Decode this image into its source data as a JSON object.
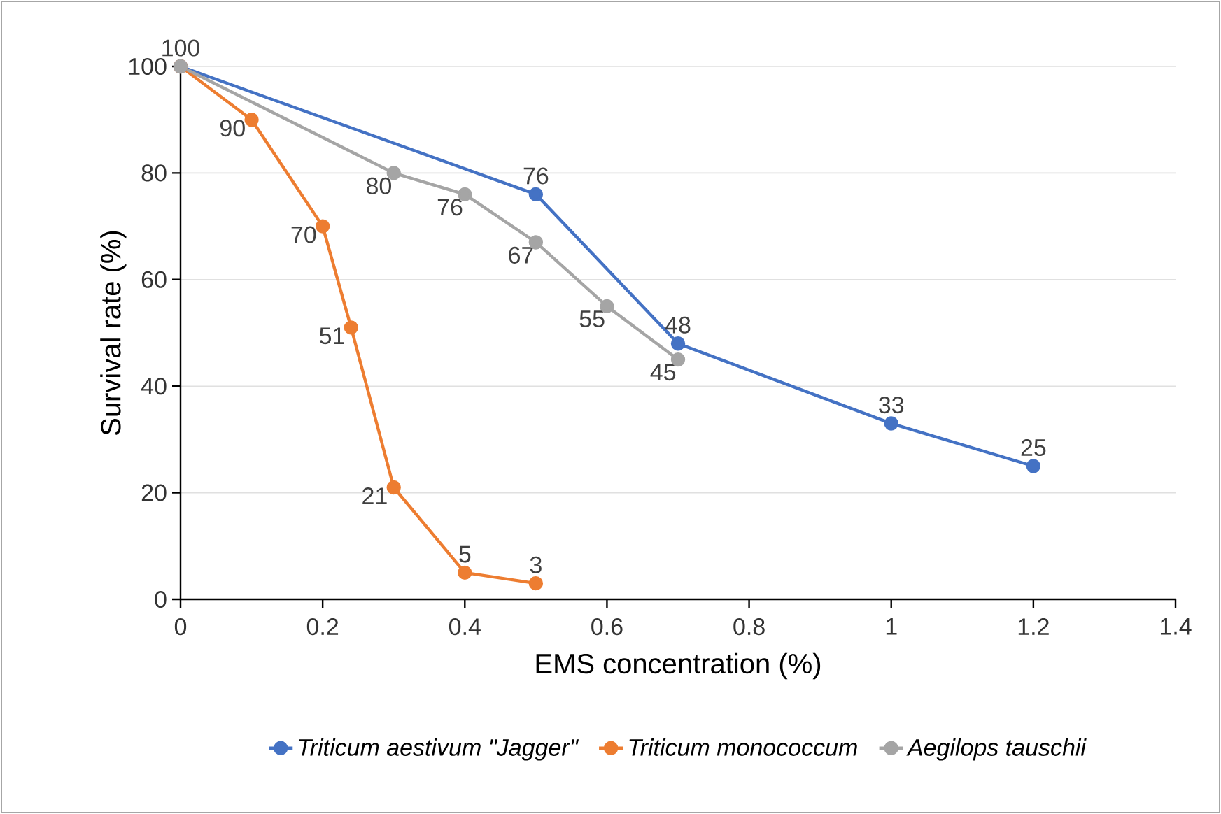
{
  "chart_data": {
    "type": "line",
    "xlabel": "EMS concentration (%)",
    "ylabel": "Survival rate (%)",
    "xlim": [
      0,
      1.4
    ],
    "xticks": [
      0,
      0.2,
      0.4,
      0.6,
      0.8,
      1,
      1.2,
      1.4
    ],
    "ylim": [
      0,
      100
    ],
    "yticks": [
      0,
      20,
      40,
      60,
      80,
      100
    ],
    "grid": "y",
    "legend": "bottom",
    "marker": "circle",
    "line_style": "solid",
    "series": [
      {
        "name": "Triticum aestivum \"Jagger\"",
        "color": "#4472c4",
        "x": [
          0,
          0.5,
          0.7,
          1,
          1.2
        ],
        "values": [
          100,
          76,
          48,
          33,
          25
        ],
        "value_labels": [
          "100",
          "76",
          "48",
          "33",
          "25"
        ]
      },
      {
        "name": "Triticum monococcum",
        "color": "#ed7d31",
        "x": [
          0,
          0.1,
          0.2,
          0.24,
          0.3,
          0.4,
          0.5
        ],
        "values": [
          100,
          90,
          70,
          51,
          21,
          5,
          3
        ],
        "value_labels": [
          null,
          "90",
          "70",
          "51",
          "21",
          "5",
          "3"
        ]
      },
      {
        "name": "Aegilops tauschii",
        "color": "#a5a5a5",
        "x": [
          0,
          0.3,
          0.4,
          0.5,
          0.6,
          0.7
        ],
        "values": [
          100,
          80,
          76,
          67,
          55,
          45
        ],
        "value_labels": [
          null,
          "80",
          "76",
          "67",
          "55",
          "45"
        ]
      }
    ]
  }
}
